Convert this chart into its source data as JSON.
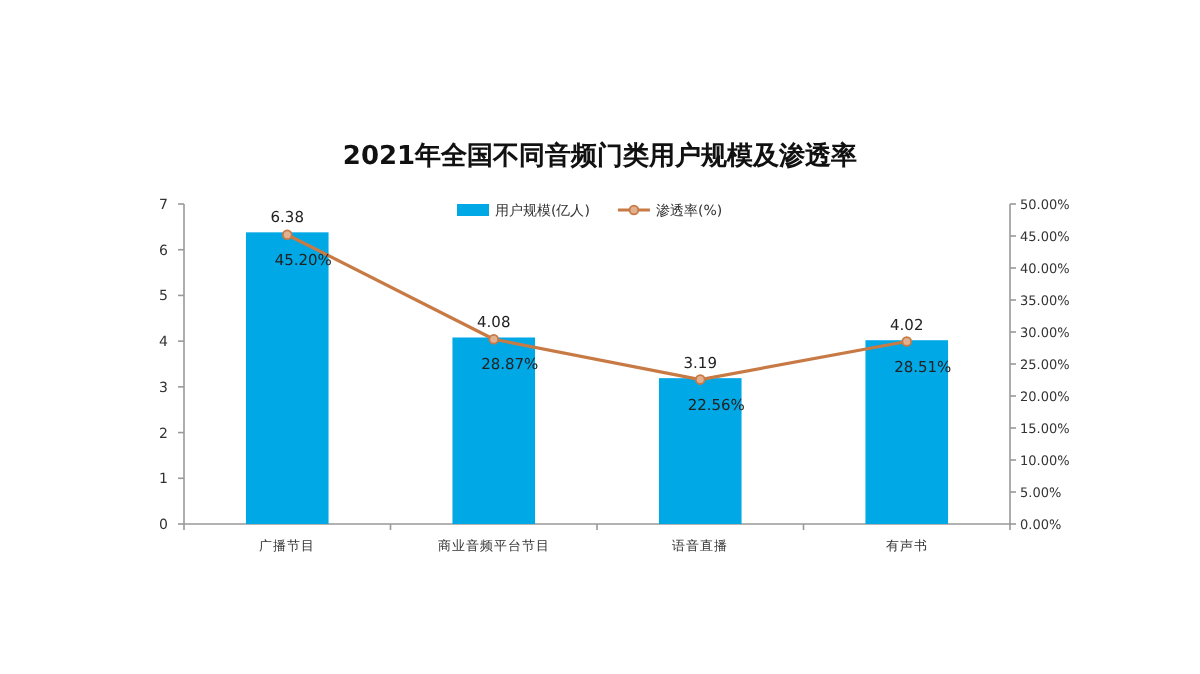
{
  "chart_data": {
    "type": "bar",
    "title": "2021年全国不同音频门类用户规模及渗透率",
    "categories": [
      "广播节目",
      "商业音频平台节目",
      "语音直播",
      "有声书"
    ],
    "series": [
      {
        "name": "用户规模(亿人)",
        "color": "#00a8e6",
        "values": [
          6.38,
          4.08,
          3.19,
          4.02
        ],
        "value_labels": [
          "6.38",
          "4.08",
          "3.19",
          "4.02"
        ]
      },
      {
        "name": "渗透率(%)",
        "type": "line",
        "axis": "y2",
        "color": "#c87a45",
        "marker": "circle",
        "values": [
          45.2,
          28.87,
          22.56,
          28.51
        ],
        "value_labels": [
          "45.20%",
          "28.87%",
          "22.56%",
          "28.51%"
        ]
      }
    ],
    "ylim": [
      0,
      7
    ],
    "yticks": [
      0,
      1,
      2,
      3,
      4,
      5,
      6,
      7
    ],
    "y2lim": [
      0,
      50
    ],
    "y2ticks": [
      {
        "value": 0,
        "label": "0.00%"
      },
      {
        "value": 5,
        "label": "5.00%"
      },
      {
        "value": 10,
        "label": "10.00%"
      },
      {
        "value": 15,
        "label": "15.00%"
      },
      {
        "value": 20,
        "label": "20.00%"
      },
      {
        "value": 25,
        "label": "25.00%"
      },
      {
        "value": 30,
        "label": "30.00%"
      },
      {
        "value": 35,
        "label": "35.00%"
      },
      {
        "value": 40,
        "label": "40.00%"
      },
      {
        "value": 45,
        "label": "45.00%"
      },
      {
        "value": 50,
        "label": "50.00%"
      }
    ],
    "legend": "top",
    "grid": false
  }
}
